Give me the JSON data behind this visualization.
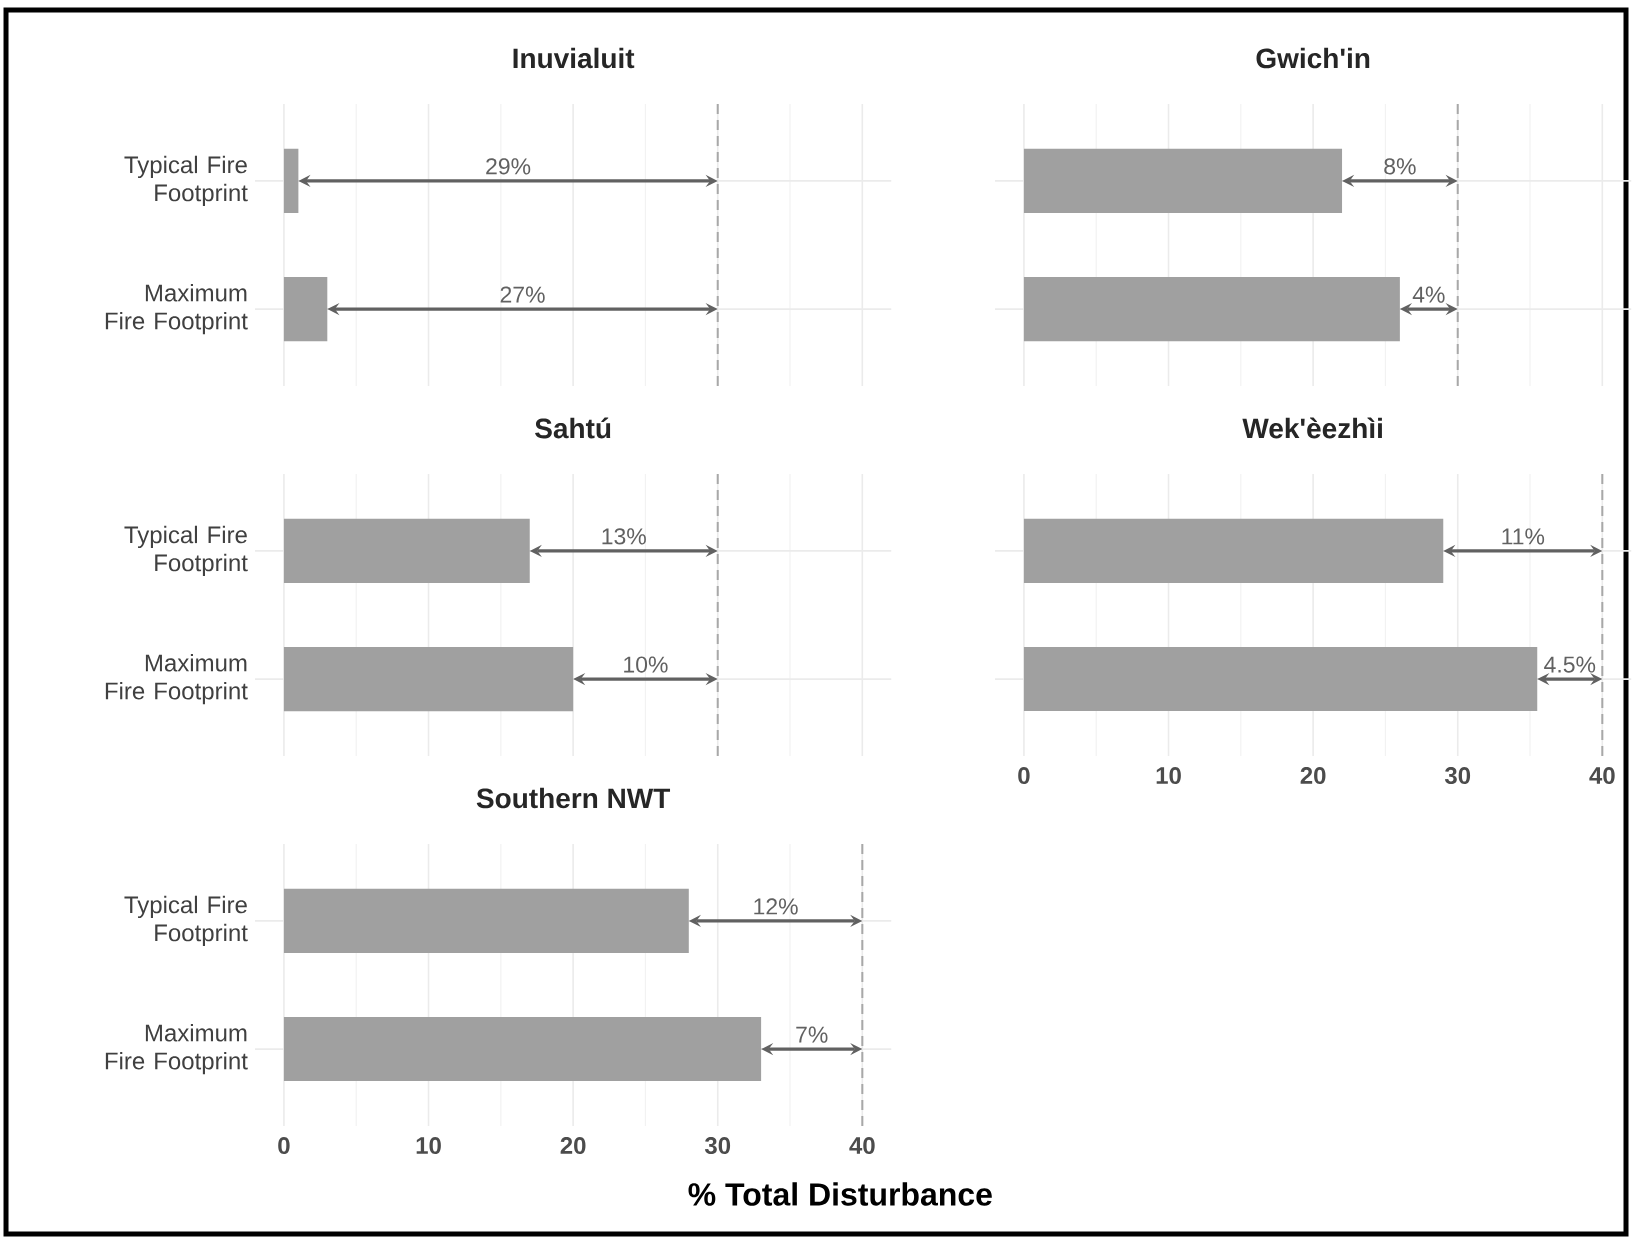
{
  "chart_data": [
    {
      "type": "bar",
      "orientation": "horizontal",
      "title": "Inuvialuit",
      "categories": [
        "Typical Fire Footprint",
        "Maximum Fire Footprint"
      ],
      "values": [
        1,
        3
      ],
      "color": "#a0a0a0",
      "xlim": [
        -2,
        42
      ],
      "xticks": [
        0,
        10,
        20,
        30,
        40
      ],
      "grid": true,
      "tick_labels": "y",
      "ref_lines": [
        {
          "axis": "x",
          "value": 30,
          "color": "#a8a8a8",
          "line_style": "dashed"
        }
      ],
      "annotations": [
        "29%",
        "27%"
      ]
    },
    {
      "type": "bar",
      "orientation": "horizontal",
      "title": "Gwich'in",
      "categories": [
        null,
        null
      ],
      "values": [
        22,
        26
      ],
      "color": "#a0a0a0",
      "xlim": [
        -2,
        42
      ],
      "xticks": [
        0,
        10,
        20,
        30,
        40
      ],
      "grid": true,
      "tick_labels": false,
      "ref_lines": [
        {
          "axis": "x",
          "value": 30,
          "color": "#a8a8a8",
          "line_style": "dashed"
        }
      ],
      "annotations": [
        "8%",
        "4%"
      ]
    },
    {
      "type": "bar",
      "orientation": "horizontal",
      "title": "Sahtú",
      "categories": [
        "Typical Fire Footprint",
        "Maximum Fire Footprint"
      ],
      "values": [
        17,
        20
      ],
      "color": "#a0a0a0",
      "xlim": [
        -2,
        42
      ],
      "xticks": [
        0,
        10,
        20,
        30,
        40
      ],
      "grid": true,
      "tick_labels": "y",
      "ref_lines": [
        {
          "axis": "x",
          "value": 30,
          "color": "#a8a8a8",
          "line_style": "dashed"
        }
      ],
      "annotations": [
        "13%",
        "10%"
      ]
    },
    {
      "type": "bar",
      "orientation": "horizontal",
      "title": "Wek'èezhìi",
      "categories": [
        null,
        null
      ],
      "values": [
        29,
        35.5
      ],
      "color": "#a0a0a0",
      "xlim": [
        -2,
        42
      ],
      "xticks": [
        0,
        10,
        20,
        30,
        40
      ],
      "grid": true,
      "tick_labels": "x",
      "ref_lines": [
        {
          "axis": "x",
          "value": 40,
          "color": "#a8a8a8",
          "line_style": "dashed"
        }
      ],
      "annotations": [
        "11%",
        "4.5%"
      ]
    },
    {
      "type": "bar",
      "orientation": "horizontal",
      "title": "Southern NWT",
      "xlabel": "% Total Disturbance",
      "categories": [
        "Typical Fire Footprint",
        "Maximum Fire Footprint"
      ],
      "values": [
        28,
        33
      ],
      "color": "#a0a0a0",
      "xlim": [
        -2,
        42
      ],
      "xticks": [
        0,
        10,
        20,
        30,
        40
      ],
      "grid": true,
      "ref_lines": [
        {
          "axis": "x",
          "value": 40,
          "color": "#a8a8a8",
          "line_style": "dashed"
        }
      ],
      "annotations": [
        "12%",
        "7%"
      ]
    }
  ]
}
